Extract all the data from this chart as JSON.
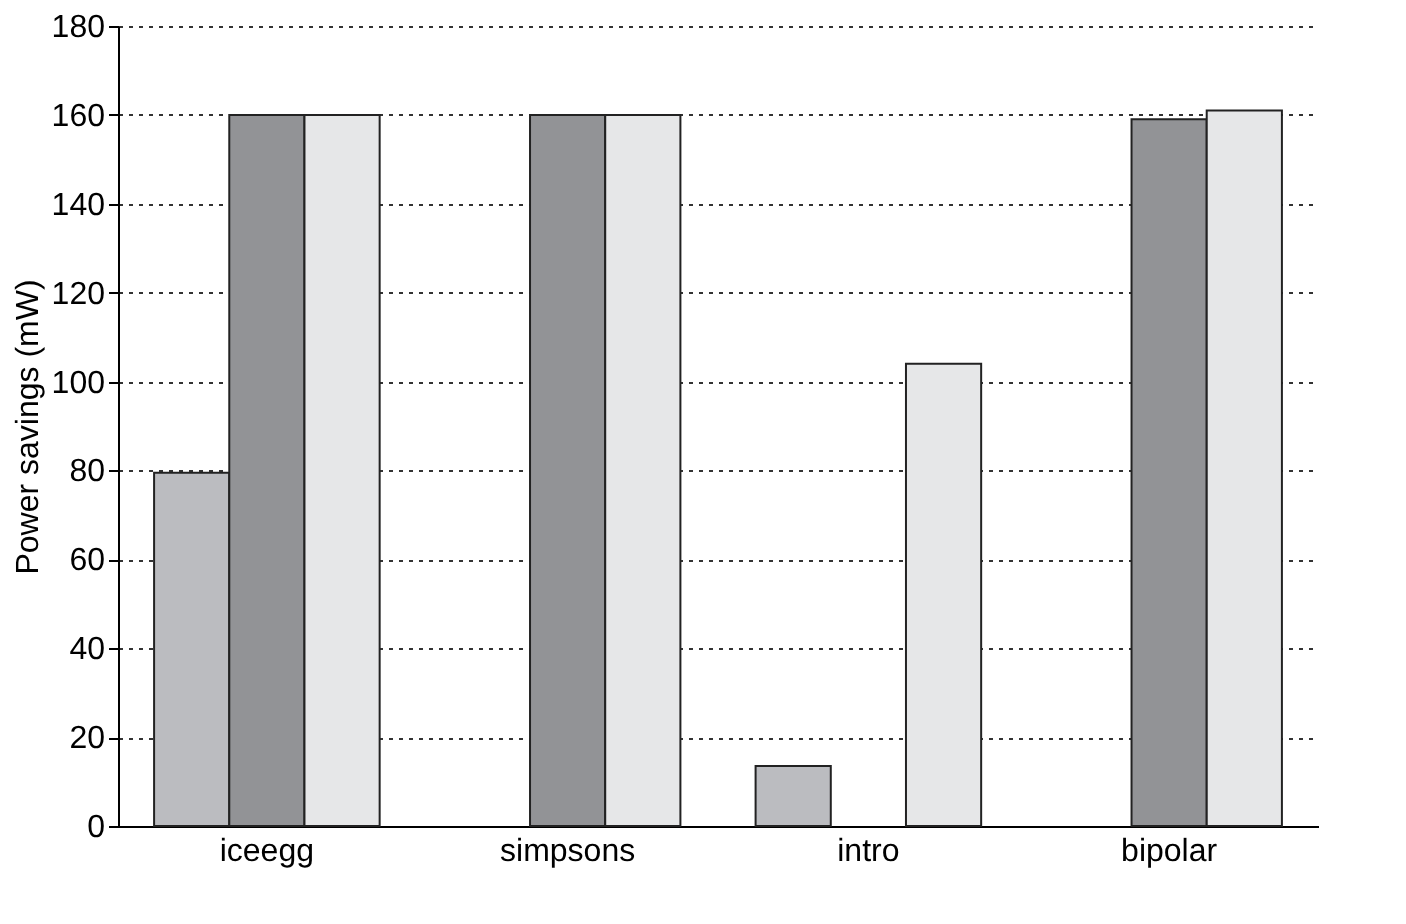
{
  "chart_data": {
    "type": "bar",
    "ylabel": "Power savings (mW)",
    "categories": [
      "iceegg",
      "simpsons",
      "intro",
      "bipolar"
    ],
    "series": [
      {
        "color": "#bbbcc0",
        "values": [
          79.5,
          null,
          13.5,
          null
        ]
      },
      {
        "color": "#929396",
        "values": [
          160,
          160,
          null,
          159
        ]
      },
      {
        "color": "#e6e7e8",
        "values": [
          160,
          160,
          104,
          161
        ]
      }
    ],
    "ylim": [
      0,
      180
    ],
    "yticks": [
      0,
      20,
      40,
      60,
      80,
      100,
      120,
      140,
      160,
      180
    ],
    "grid": "y",
    "legend": false
  }
}
